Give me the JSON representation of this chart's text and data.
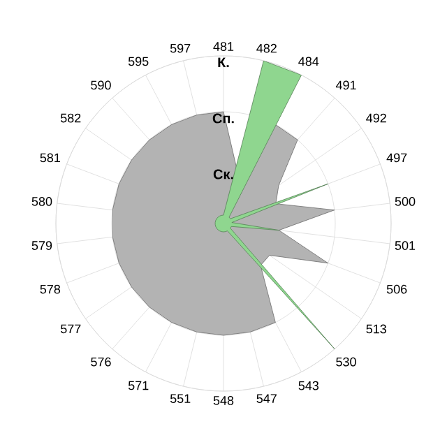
{
  "chart_data": {
    "type": "radar",
    "categories": [
      "481",
      "482",
      "484",
      "491",
      "492",
      "497",
      "500",
      "501",
      "506",
      "513",
      "530",
      "543",
      "547",
      "548",
      "551",
      "571",
      "576",
      "577",
      "578",
      "579",
      "580",
      "581",
      "582",
      "590",
      "595",
      "597"
    ],
    "ylim": [
      0,
      3
    ],
    "yticks": [
      {
        "value": 1,
        "label": "Ск."
      },
      {
        "value": 2,
        "label": "Сп."
      },
      {
        "value": 3,
        "label": "К."
      }
    ],
    "grid": true,
    "series": [
      {
        "color": "#b3b3b3",
        "values": [
          2,
          1,
          2,
          2,
          1.2,
          1,
          2,
          1,
          2,
          1,
          1,
          2,
          2,
          2,
          2,
          2,
          2,
          2,
          2,
          2,
          2,
          2,
          2,
          2,
          2,
          2
        ]
      },
      {
        "color": "#8fd68f",
        "values": [
          0.15,
          3,
          3,
          0.15,
          0.15,
          2,
          0.15,
          1,
          0.15,
          0.15,
          3,
          0.15,
          0.15,
          0.15,
          0.15,
          0.15,
          0.15,
          0.15,
          0.15,
          0.15,
          0.15,
          0.15,
          0.15,
          0.15,
          0.15,
          0.15
        ]
      }
    ]
  }
}
